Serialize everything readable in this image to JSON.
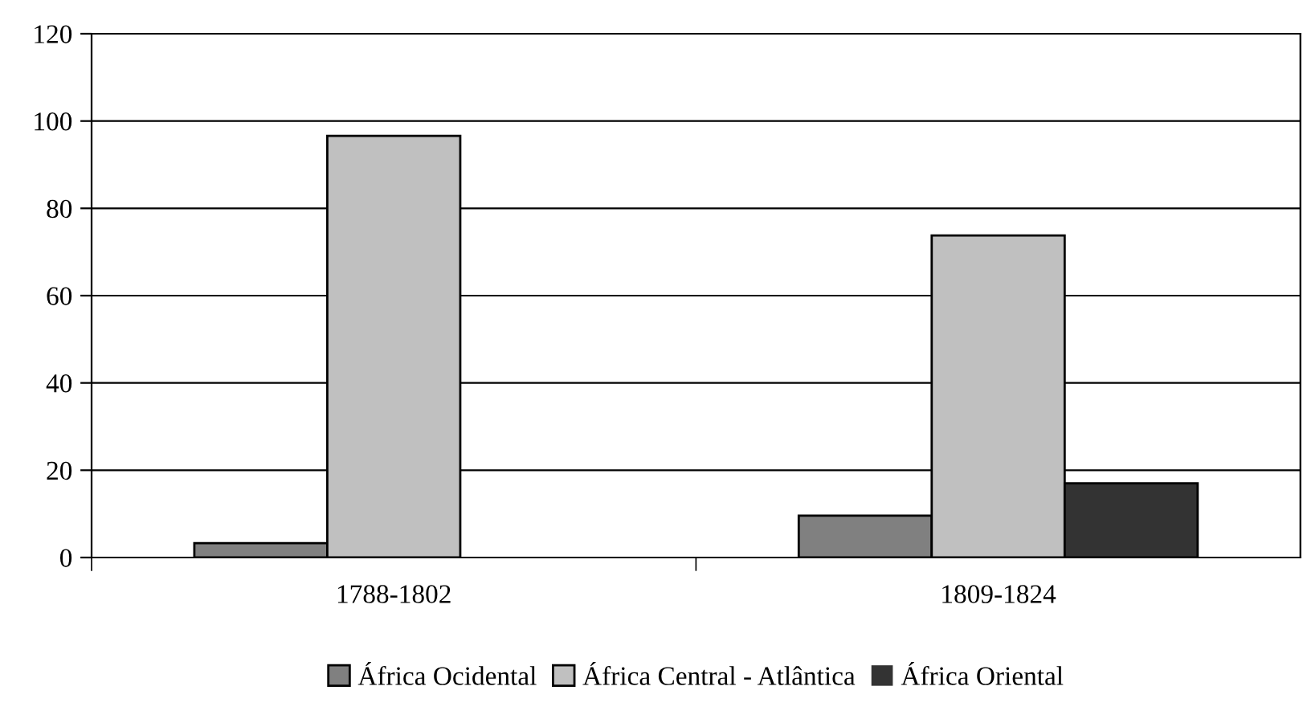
{
  "chart_data": {
    "type": "bar",
    "categories": [
      "1788-1802",
      "1809-1824"
    ],
    "series": [
      {
        "name": "África Ocidental",
        "color": "#808080",
        "values": [
          3.3,
          9.6
        ]
      },
      {
        "name": "África Central - Atlântica",
        "color": "#c0c0c0",
        "values": [
          96.6,
          73.8
        ]
      },
      {
        "name": "África Oriental",
        "color": "#333333",
        "values": [
          0,
          17.0
        ]
      }
    ],
    "ylim": [
      0,
      120
    ],
    "yticks": [
      0,
      20,
      40,
      60,
      80,
      100,
      120
    ],
    "grid": "y",
    "legend": "bottom"
  }
}
